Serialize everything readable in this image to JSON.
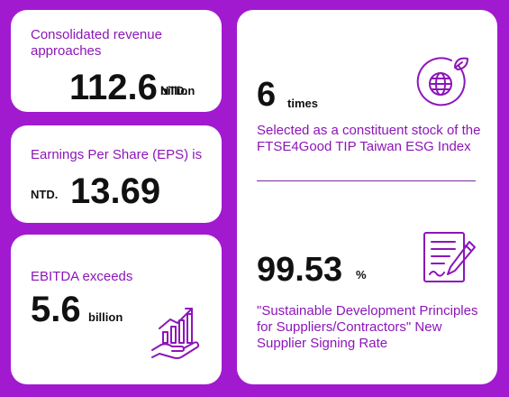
{
  "revenue": {
    "label": "Consolidated revenue approaches",
    "currency": "NTD.",
    "value": "112.6",
    "unit": "billion"
  },
  "eps": {
    "label": "Earnings Per Share (EPS) is",
    "currency": "NTD.",
    "value": "13.69"
  },
  "ebitda": {
    "label": "EBITDA exceeds",
    "value": "5.6",
    "unit": "billion",
    "icon": "growth-hand-icon"
  },
  "esg_index": {
    "value": "6",
    "unit": "times",
    "label": "Selected as a constituent stock of the FTSE4Good TIP Taiwan ESG Index",
    "icon": "globe-leaf-icon"
  },
  "supplier_signing": {
    "value": "99.53",
    "unit": "%",
    "label": "\"Sustainable Development Principles for Suppliers/Contractors\" New Supplier Signing Rate",
    "icon": "document-sign-icon"
  },
  "colors": {
    "background": "#a21ad0",
    "accent": "#8c16b8",
    "card": "#ffffff"
  }
}
